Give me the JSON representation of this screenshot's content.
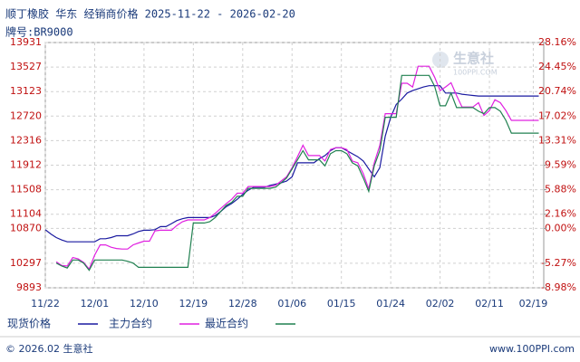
{
  "chart_data": {
    "type": "line",
    "title": "顺丁橡胶 华东 经销商价格 2025-11-22 - 2026-02-20",
    "subtitle": "牌号:BR9000",
    "categories": [
      "11/22",
      null,
      null,
      null,
      null,
      null,
      null,
      null,
      null,
      "12/01",
      null,
      null,
      null,
      null,
      null,
      null,
      null,
      null,
      "12/10",
      null,
      null,
      null,
      null,
      null,
      null,
      null,
      null,
      "12/19",
      null,
      null,
      null,
      null,
      null,
      null,
      null,
      null,
      "12/28",
      null,
      null,
      null,
      null,
      null,
      null,
      null,
      null,
      "01/06",
      null,
      null,
      null,
      null,
      null,
      null,
      null,
      null,
      "01/15",
      null,
      null,
      null,
      null,
      null,
      null,
      null,
      null,
      "01/24",
      null,
      null,
      null,
      null,
      null,
      null,
      null,
      null,
      "02/02",
      null,
      null,
      null,
      null,
      null,
      null,
      null,
      null,
      "02/11",
      null,
      null,
      null,
      null,
      null,
      null,
      null,
      "02/19",
      null
    ],
    "series": [
      {
        "name": "现货价格",
        "color": "#1a1aa0",
        "values": [
          10850,
          10780,
          10720,
          10680,
          10650,
          10650,
          10650,
          10650,
          10650,
          10650,
          10700,
          10700,
          10720,
          10750,
          10750,
          10750,
          10780,
          10820,
          10840,
          10840,
          10850,
          10900,
          10900,
          10950,
          11000,
          11030,
          11050,
          11050,
          11050,
          11050,
          11050,
          11080,
          11150,
          11230,
          11280,
          11350,
          11430,
          11500,
          11550,
          11550,
          11550,
          11580,
          11600,
          11620,
          11650,
          11720,
          11950,
          11950,
          11950,
          11950,
          12020,
          12070,
          12150,
          12200,
          12200,
          12150,
          12100,
          12050,
          11980,
          11850,
          11720,
          11870,
          12390,
          12700,
          12910,
          13000,
          13100,
          13140,
          13170,
          13200,
          13220,
          13220,
          13220,
          13100,
          13100,
          13100,
          13080,
          13070,
          13060,
          13050,
          13050,
          13050,
          13050,
          13050,
          13050,
          13050,
          13050,
          13050,
          13050,
          13050,
          13050
        ]
      },
      {
        "name": "主力合约",
        "color": "#e020e0",
        "values": [
          null,
          null,
          10320,
          10260,
          10250,
          10390,
          10370,
          10310,
          10200,
          10430,
          10600,
          10600,
          10560,
          10540,
          10530,
          10530,
          10600,
          10630,
          10660,
          10660,
          10830,
          10840,
          10840,
          10840,
          10920,
          10980,
          11010,
          11010,
          11010,
          11010,
          11050,
          11120,
          11200,
          11280,
          11350,
          11450,
          11450,
          11560,
          11560,
          11560,
          11560,
          11560,
          11580,
          11650,
          11720,
          11870,
          12050,
          12240,
          12070,
          12070,
          12070,
          11980,
          12170,
          12200,
          12200,
          12170,
          11980,
          11950,
          11770,
          11520,
          11950,
          12240,
          12760,
          12760,
          12760,
          13260,
          13260,
          13200,
          13540,
          13540,
          13540,
          13360,
          13140,
          13200,
          13270,
          13060,
          12870,
          12870,
          12870,
          12940,
          12730,
          12810,
          12990,
          12940,
          12810,
          12650,
          12650,
          12650,
          12650,
          12650,
          12650
        ]
      },
      {
        "name": "最近合约",
        "color": "#208050",
        "values": [
          null,
          null,
          10300,
          10250,
          10220,
          10350,
          10350,
          10300,
          10180,
          10350,
          10350,
          10350,
          10350,
          10350,
          10350,
          10330,
          10300,
          10230,
          10230,
          10230,
          10230,
          10230,
          10230,
          10230,
          10230,
          10230,
          10230,
          10960,
          10960,
          10960,
          10980,
          11050,
          11150,
          11250,
          11300,
          11400,
          11400,
          11530,
          11530,
          11530,
          11530,
          11530,
          11550,
          11620,
          11700,
          11850,
          12000,
          12150,
          12000,
          12000,
          12000,
          11900,
          12100,
          12150,
          12150,
          12100,
          11950,
          11900,
          11700,
          11480,
          11900,
          12150,
          12700,
          12700,
          12700,
          13390,
          13390,
          13390,
          13390,
          13390,
          13390,
          13210,
          12890,
          12890,
          13100,
          12860,
          12860,
          12860,
          12860,
          12800,
          12760,
          12860,
          12860,
          12800,
          12650,
          12440,
          12440,
          12440,
          12440,
          12440,
          12440
        ]
      }
    ],
    "ylim": [
      9893,
      13931
    ],
    "yticks": [
      13931,
      13527,
      13123,
      12720,
      12316,
      11912,
      11508,
      11104,
      10870,
      10297,
      9893
    ],
    "y2lim": [
      -8.98,
      28.16
    ],
    "y2ticks": [
      {
        "value": 28.16,
        "label": "28.16%"
      },
      {
        "value": 24.45,
        "label": "24.45%"
      },
      {
        "value": 20.74,
        "label": "20.74%"
      },
      {
        "value": 17.02,
        "label": "17.02%"
      },
      {
        "value": 13.31,
        "label": "13.31%"
      },
      {
        "value": 9.59,
        "label": "9.59%"
      },
      {
        "value": 5.88,
        "label": "5.88%"
      },
      {
        "value": 2.16,
        "label": "2.16%"
      },
      {
        "value": 0,
        "label": "0.00%"
      },
      {
        "value": -5.27,
        "label": "-5.27%"
      },
      {
        "value": -8.98,
        "label": "-8.98%"
      }
    ],
    "grid": true,
    "watermark": [
      "生意社",
      "100PPI.COM"
    ],
    "footer": {
      "left": "© 2026.02 生意社",
      "right": "www.100PPI.com"
    }
  }
}
